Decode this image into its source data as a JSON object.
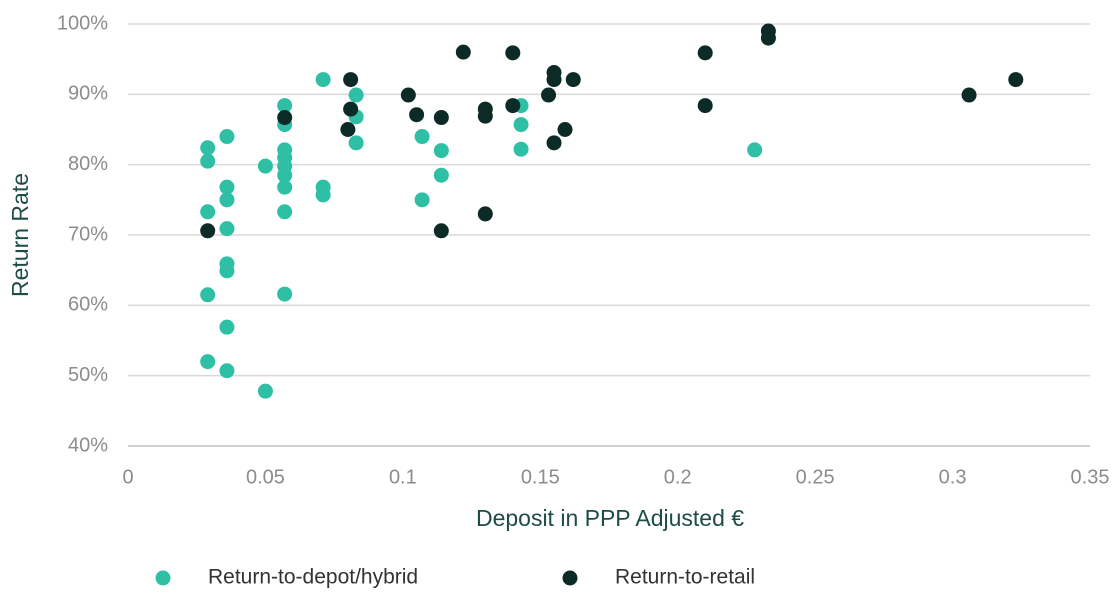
{
  "chart_data": {
    "type": "scatter",
    "x_label": "Deposit in PPP Adjusted €",
    "y_label": "Return Rate",
    "xlim": [
      0,
      0.35
    ],
    "xticks": [
      0,
      0.05,
      0.1,
      0.15,
      0.2,
      0.25,
      0.3,
      0.35
    ],
    "ylim": [
      40,
      100
    ],
    "yticks": [
      {
        "value": 40,
        "label": "40%"
      },
      {
        "value": 50,
        "label": "50%"
      },
      {
        "value": 60,
        "label": "60%"
      },
      {
        "value": 70,
        "label": "70%"
      },
      {
        "value": 80,
        "label": "80%"
      },
      {
        "value": 90,
        "label": "90%"
      },
      {
        "value": 100,
        "label": "100%"
      }
    ],
    "grid": true,
    "legend": "bottom",
    "series": [
      {
        "name": "Return-to-depot/hybrid",
        "color": "#2ebfa5",
        "x": [
          0.029,
          0.029,
          0.029,
          0.029,
          0.029,
          0.036,
          0.036,
          0.036,
          0.036,
          0.036,
          0.036,
          0.036,
          0.036,
          0.05,
          0.05,
          0.057,
          0.057,
          0.057,
          0.057,
          0.057,
          0.057,
          0.057,
          0.057,
          0.057,
          0.071,
          0.071,
          0.071,
          0.083,
          0.083,
          0.083,
          0.107,
          0.107,
          0.114,
          0.114,
          0.143,
          0.143,
          0.143,
          0.228
        ],
        "values": [
          82.4,
          80.5,
          73.3,
          61.5,
          52,
          84,
          76.8,
          75,
          70.9,
          65.9,
          64.9,
          56.9,
          50.7,
          79.8,
          47.8,
          88.4,
          85.7,
          82.1,
          81,
          79.8,
          78.5,
          76.8,
          73.3,
          61.6,
          92.1,
          76.8,
          75.7,
          89.9,
          86.8,
          83.1,
          84,
          75,
          82,
          78.5,
          88.4,
          85.7,
          82.2,
          82.1
        ]
      },
      {
        "name": "Return-to-retail",
        "color": "#0d2b26",
        "x": [
          0.029,
          0.057,
          0.081,
          0.081,
          0.08,
          0.102,
          0.105,
          0.114,
          0.114,
          0.122,
          0.13,
          0.13,
          0.13,
          0.14,
          0.14,
          0.153,
          0.155,
          0.155,
          0.155,
          0.159,
          0.162,
          0.21,
          0.21,
          0.233,
          0.233,
          0.306,
          0.323
        ],
        "values": [
          70.6,
          86.7,
          92.1,
          87.9,
          85,
          89.9,
          87.1,
          86.7,
          70.6,
          96,
          87.9,
          86.9,
          73,
          95.9,
          88.4,
          89.9,
          93.1,
          92.1,
          83.1,
          85,
          92.1,
          95.9,
          88.4,
          99,
          98,
          89.9,
          92.1
        ]
      }
    ]
  }
}
